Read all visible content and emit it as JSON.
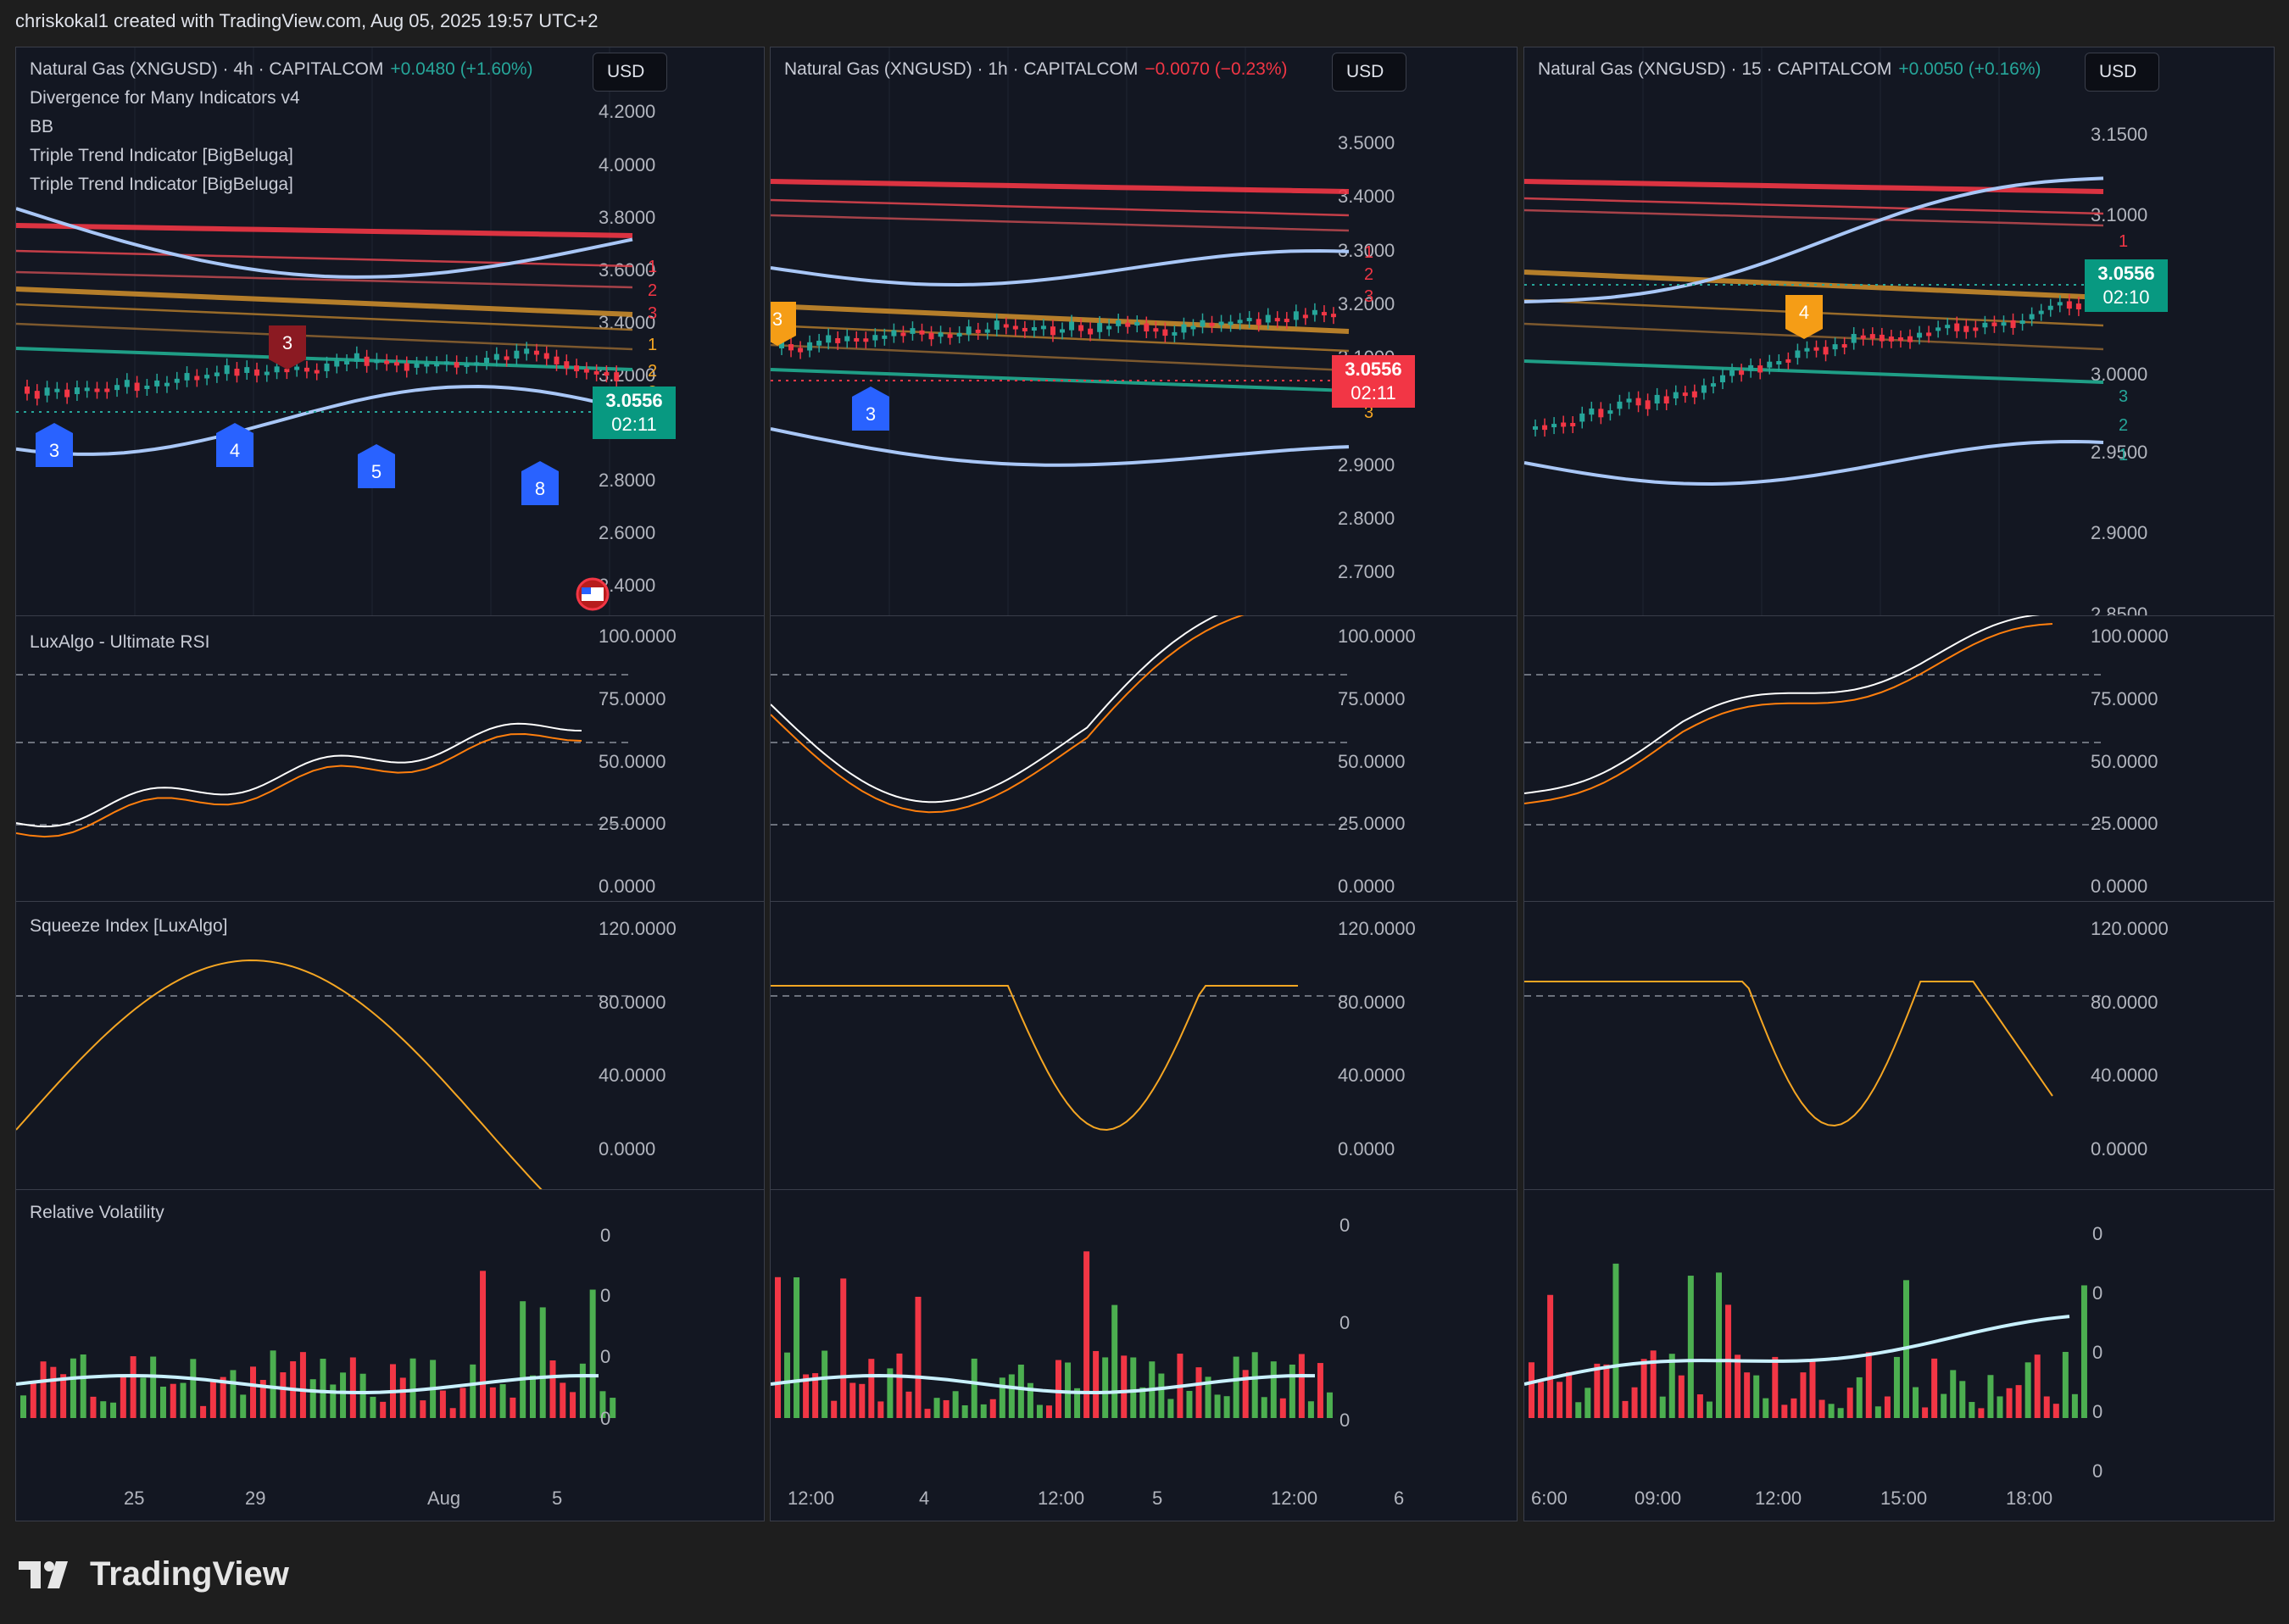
{
  "header": {
    "text": "chriskokal1 created with TradingView.com, Aug 05, 2025 19:57 UTC+2"
  },
  "footer": {
    "logo_text": "TradingView"
  },
  "colors": {
    "bg": "#131722",
    "up": "#26a69a",
    "down": "#f23645",
    "bb": "#a9c7f7",
    "rsi_line": "#ffffff",
    "rsi_ma": "#ff7f0e",
    "squeeze": "#f5a623",
    "vol_up": "#4caf50",
    "vol_down": "#f23645"
  },
  "icons": {
    "flag": "us-flag-icon",
    "logo": "tradingview-logo-icon"
  },
  "panels": [
    {
      "id": "p1",
      "currency": "USD",
      "title": "Natural Gas (XNGUSD) · 4h · CAPITALCOM",
      "change": "+0.0480 (+1.60%)",
      "change_dir": "up",
      "legend": [
        "Divergence for Many Indicators v4",
        "BB",
        "Triple Trend Indicator [BigBeluga]",
        "Triple Trend Indicator [BigBeluga]"
      ],
      "price_axis": [
        "4.2000",
        "4.0000",
        "3.8000",
        "3.6000",
        "3.4000",
        "3.2000",
        "2.8000",
        "2.6000",
        "2.4000"
      ],
      "price_tag": {
        "price": "3.0556",
        "time": "02:11",
        "dir": "up"
      },
      "trend_labels": [
        "1",
        "2",
        "3",
        "1",
        "2",
        "3"
      ],
      "markers": [
        {
          "label": "3",
          "kind": "bull"
        },
        {
          "label": "4",
          "kind": "bull"
        },
        {
          "label": "5",
          "kind": "bull"
        },
        {
          "label": "8",
          "kind": "bull"
        },
        {
          "label": "3",
          "kind": "bear"
        }
      ],
      "rsi": {
        "title": "LuxAlgo - Ultimate RSI",
        "axis": [
          "100.0000",
          "75.0000",
          "50.0000",
          "25.0000",
          "0.0000"
        ]
      },
      "squeeze": {
        "title": "Squeeze Index [LuxAlgo]",
        "axis": [
          "120.0000",
          "80.0000",
          "40.0000",
          "0.0000"
        ]
      },
      "volatility": {
        "title": "Relative Volatility",
        "axis": [
          "0",
          "0",
          "0",
          "0"
        ]
      },
      "time_axis": [
        "25",
        "29",
        "Aug",
        "5"
      ]
    },
    {
      "id": "p2",
      "currency": "USD",
      "title": "Natural Gas (XNGUSD) · 1h · CAPITALCOM",
      "change": "−0.0070 (−0.23%)",
      "change_dir": "down",
      "legend": [],
      "price_axis": [
        "3.5000",
        "3.4000",
        "3.3000",
        "3.2000",
        "3.1000",
        "2.9000",
        "2.8000",
        "2.7000"
      ],
      "price_tag": {
        "price": "3.0556",
        "time": "02:11",
        "dir": "down"
      },
      "trend_labels": [
        "1",
        "2",
        "3",
        "1",
        "2",
        "3"
      ],
      "markers": [
        {
          "label": "3",
          "kind": "bull"
        },
        {
          "label": "3",
          "kind": "warn"
        }
      ],
      "rsi": {
        "title": "",
        "axis": [
          "100.0000",
          "75.0000",
          "50.0000",
          "25.0000",
          "0.0000"
        ]
      },
      "squeeze": {
        "title": "",
        "axis": [
          "120.0000",
          "80.0000",
          "40.0000",
          "0.0000"
        ]
      },
      "volatility": {
        "title": "",
        "axis": [
          "0",
          "0",
          "0"
        ]
      },
      "time_axis": [
        "12:00",
        "4",
        "12:00",
        "5",
        "12:00",
        "6"
      ]
    },
    {
      "id": "p3",
      "currency": "USD",
      "title": "Natural Gas (XNGUSD) · 15 · CAPITALCOM",
      "change": "+0.0050 (+0.16%)",
      "change_dir": "up",
      "legend": [],
      "price_axis": [
        "3.1500",
        "3.1000",
        "3.0000",
        "2.9500",
        "2.9000",
        "2.8500"
      ],
      "price_tag": {
        "price": "3.0556",
        "time": "02:10",
        "dir": "up"
      },
      "trend_labels": [
        "1",
        "2",
        "3",
        "3",
        "2",
        "1"
      ],
      "markers": [
        {
          "label": "4",
          "kind": "warn"
        }
      ],
      "rsi": {
        "title": "",
        "axis": [
          "100.0000",
          "75.0000",
          "50.0000",
          "25.0000",
          "0.0000"
        ]
      },
      "squeeze": {
        "title": "",
        "axis": [
          "120.0000",
          "80.0000",
          "40.0000",
          "0.0000"
        ]
      },
      "volatility": {
        "title": "",
        "axis": [
          "0",
          "0",
          "0",
          "0",
          "0"
        ]
      },
      "time_axis": [
        "6:00",
        "09:00",
        "12:00",
        "15:00",
        "18:00"
      ]
    }
  ]
}
